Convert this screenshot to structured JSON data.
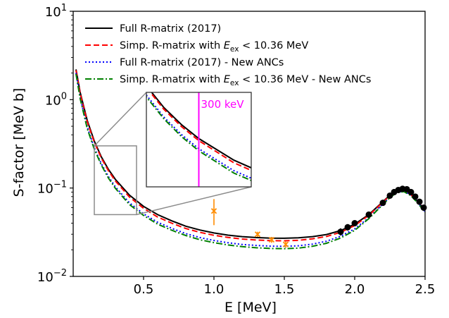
{
  "chart_data": {
    "type": "line",
    "xlabel": "E [MeV]",
    "ylabel": "S-factor [MeV b]",
    "xlim": [
      0.0,
      2.5
    ],
    "ylim": [
      0.01,
      10
    ],
    "yscale": "log",
    "grid": false,
    "legend_position": "top-left",
    "x_ticks": [
      {
        "value": 0.5,
        "label": "0.5"
      },
      {
        "value": 1.0,
        "label": "1.0"
      },
      {
        "value": 1.5,
        "label": "1.5"
      },
      {
        "value": 2.0,
        "label": "2.0"
      },
      {
        "value": 2.5,
        "label": "2.5"
      }
    ],
    "y_ticks": [
      {
        "value": 0.01,
        "base": "10",
        "exp": "−2"
      },
      {
        "value": 0.1,
        "base": "10",
        "exp": "−1"
      },
      {
        "value": 1,
        "base": "10",
        "exp": "0"
      },
      {
        "value": 10,
        "base": "10",
        "exp": "1"
      }
    ],
    "series": [
      {
        "name": "Full R-matrix (2017)",
        "color": "#000000",
        "style": "solid",
        "x": [
          0.02,
          0.05,
          0.1,
          0.15,
          0.2,
          0.25,
          0.3,
          0.4,
          0.5,
          0.6,
          0.7,
          0.8,
          0.9,
          1.0,
          1.1,
          1.2,
          1.3,
          1.4,
          1.5,
          1.6,
          1.7,
          1.8,
          1.9,
          2.0,
          2.1,
          2.2,
          2.25,
          2.3,
          2.35,
          2.4,
          2.45,
          2.5
        ],
        "y": [
          2.2,
          1.2,
          0.58,
          0.34,
          0.225,
          0.163,
          0.125,
          0.083,
          0.062,
          0.05,
          0.0425,
          0.037,
          0.0335,
          0.031,
          0.0293,
          0.0282,
          0.0275,
          0.0271,
          0.027,
          0.0273,
          0.0282,
          0.0298,
          0.033,
          0.039,
          0.05,
          0.07,
          0.083,
          0.094,
          0.095,
          0.085,
          0.07,
          0.056
        ]
      },
      {
        "name": "Simp. R-matrix with E_ex < 10.36 MeV",
        "color": "#ff0000",
        "style": "dashed",
        "x": [
          0.02,
          0.05,
          0.1,
          0.15,
          0.2,
          0.25,
          0.3,
          0.4,
          0.5,
          0.6,
          0.7,
          0.8,
          0.9,
          1.0,
          1.1,
          1.2,
          1.3,
          1.4,
          1.5,
          1.6,
          1.7,
          1.8,
          1.9,
          2.0,
          2.1,
          2.2,
          2.25,
          2.3,
          2.35,
          2.4,
          2.45,
          2.5
        ],
        "y": [
          2.15,
          1.17,
          0.56,
          0.33,
          0.218,
          0.157,
          0.12,
          0.079,
          0.059,
          0.047,
          0.04,
          0.0348,
          0.0315,
          0.0292,
          0.0276,
          0.0265,
          0.0258,
          0.0254,
          0.0253,
          0.0256,
          0.0266,
          0.0283,
          0.0316,
          0.0376,
          0.049,
          0.069,
          0.082,
          0.093,
          0.094,
          0.084,
          0.069,
          0.055
        ]
      },
      {
        "name": "Full R-matrix (2017) - New ANCs",
        "color": "#0000ff",
        "style": "dotted",
        "x": [
          0.02,
          0.05,
          0.1,
          0.15,
          0.2,
          0.25,
          0.3,
          0.4,
          0.5,
          0.6,
          0.7,
          0.8,
          0.9,
          1.0,
          1.1,
          1.2,
          1.3,
          1.4,
          1.5,
          1.6,
          1.7,
          1.8,
          1.9,
          2.0,
          2.1,
          2.2,
          2.25,
          2.3,
          2.35,
          2.4,
          2.45,
          2.5
        ],
        "y": [
          2.0,
          1.05,
          0.49,
          0.285,
          0.188,
          0.135,
          0.103,
          0.068,
          0.051,
          0.041,
          0.035,
          0.0305,
          0.0275,
          0.0255,
          0.024,
          0.023,
          0.0224,
          0.022,
          0.0219,
          0.0222,
          0.0232,
          0.025,
          0.0285,
          0.0345,
          0.046,
          0.066,
          0.079,
          0.09,
          0.092,
          0.083,
          0.068,
          0.054
        ]
      },
      {
        "name": "Simp. R-matrix with E_ex < 10.36 MeV  - New ANCs",
        "color": "#008000",
        "style": "dashdot",
        "x": [
          0.02,
          0.05,
          0.1,
          0.15,
          0.2,
          0.25,
          0.3,
          0.4,
          0.5,
          0.6,
          0.7,
          0.8,
          0.9,
          1.0,
          1.1,
          1.2,
          1.3,
          1.4,
          1.5,
          1.6,
          1.7,
          1.8,
          1.9,
          2.0,
          2.1,
          2.2,
          2.25,
          2.3,
          2.35,
          2.4,
          2.45,
          2.5
        ],
        "y": [
          1.95,
          1.02,
          0.47,
          0.275,
          0.182,
          0.13,
          0.099,
          0.065,
          0.049,
          0.039,
          0.0333,
          0.029,
          0.026,
          0.0241,
          0.0227,
          0.0217,
          0.0211,
          0.0207,
          0.0206,
          0.0209,
          0.0219,
          0.0237,
          0.0272,
          0.0332,
          0.045,
          0.065,
          0.078,
          0.089,
          0.091,
          0.082,
          0.067,
          0.053
        ]
      }
    ],
    "data_points": {
      "black": {
        "color": "#000000",
        "points": [
          {
            "x": 1.9,
            "y": 0.032,
            "lo": 0.029,
            "hi": 0.035
          },
          {
            "x": 1.95,
            "y": 0.036,
            "lo": 0.033,
            "hi": 0.039
          },
          {
            "x": 2.0,
            "y": 0.04,
            "lo": 0.037,
            "hi": 0.043
          },
          {
            "x": 2.1,
            "y": 0.05,
            "lo": 0.047,
            "hi": 0.053
          },
          {
            "x": 2.2,
            "y": 0.068,
            "lo": 0.066,
            "hi": 0.07
          },
          {
            "x": 2.25,
            "y": 0.082,
            "lo": 0.08,
            "hi": 0.084
          },
          {
            "x": 2.28,
            "y": 0.09,
            "lo": 0.088,
            "hi": 0.092
          },
          {
            "x": 2.31,
            "y": 0.095,
            "lo": 0.093,
            "hi": 0.097
          },
          {
            "x": 2.34,
            "y": 0.098,
            "lo": 0.096,
            "hi": 0.1
          },
          {
            "x": 2.37,
            "y": 0.097,
            "lo": 0.095,
            "hi": 0.099
          },
          {
            "x": 2.4,
            "y": 0.09,
            "lo": 0.088,
            "hi": 0.092
          },
          {
            "x": 2.43,
            "y": 0.08,
            "lo": 0.078,
            "hi": 0.082
          },
          {
            "x": 2.46,
            "y": 0.07,
            "lo": 0.068,
            "hi": 0.072
          },
          {
            "x": 2.49,
            "y": 0.06,
            "lo": 0.058,
            "hi": 0.062
          }
        ]
      },
      "orange": {
        "color": "#ff8c00",
        "points": [
          {
            "x": 1.0,
            "y": 0.055,
            "lo": 0.038,
            "hi": 0.075
          },
          {
            "x": 1.31,
            "y": 0.03,
            "lo": 0.028,
            "hi": 0.032
          },
          {
            "x": 1.41,
            "y": 0.026,
            "lo": 0.024,
            "hi": 0.028
          },
          {
            "x": 1.51,
            "y": 0.023,
            "lo": 0.021,
            "hi": 0.025
          }
        ]
      }
    },
    "inset": {
      "xlim": [
        0.15,
        0.45
      ],
      "ylim": [
        0.05,
        0.3
      ],
      "marker_x": 0.3,
      "marker_label": "300 keV",
      "marker_color": "#ff00ff"
    }
  }
}
